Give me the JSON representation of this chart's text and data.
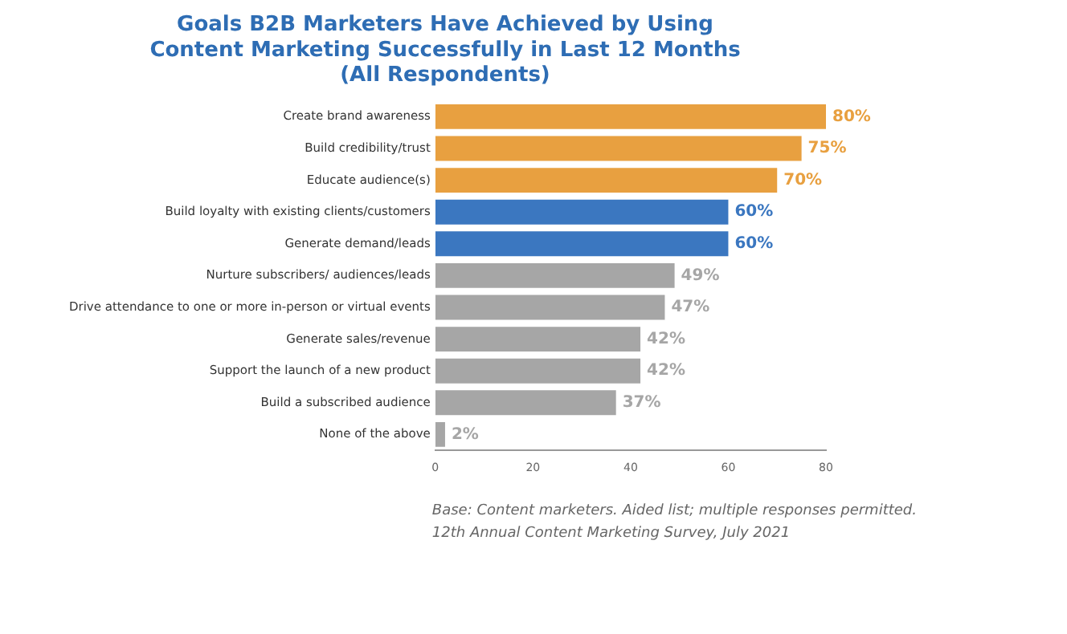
{
  "chart_data": {
    "type": "bar",
    "orientation": "horizontal",
    "title": "Goals B2B Marketers Have Achieved by Using\nContent Marketing Successfully in Last 12 Months\n(All Respondents)",
    "categories": [
      "Create brand awareness",
      "Build credibility/trust",
      "Educate audience(s)",
      "Build loyalty with existing clients/customers",
      "Generate demand/leads",
      "Nurture subscribers/ audiences/leads",
      "Drive attendance to one or more in-person or virtual events",
      "Generate sales/revenue",
      "Support the launch of a new product",
      "Build a subscribed audience",
      "None of the above"
    ],
    "values": [
      80,
      75,
      70,
      60,
      60,
      49,
      47,
      42,
      42,
      37,
      2
    ],
    "value_labels": [
      "80%",
      "75%",
      "70%",
      "60%",
      "60%",
      "49%",
      "47%",
      "42%",
      "42%",
      "37%",
      "2%"
    ],
    "colors": [
      "#e8a040",
      "#e8a040",
      "#e8a040",
      "#3b77c0",
      "#3b77c0",
      "#a6a6a6",
      "#a6a6a6",
      "#a6a6a6",
      "#a6a6a6",
      "#a6a6a6",
      "#a6a6a6"
    ],
    "xlim": [
      0,
      80
    ],
    "xticks": [
      0,
      20,
      40,
      60,
      80
    ],
    "grid": false,
    "legend": false,
    "annotations": [
      "Base: Content marketers. Aided list; multiple responses permitted.",
      "12th Annual Content Marketing Survey, July 2021"
    ]
  }
}
